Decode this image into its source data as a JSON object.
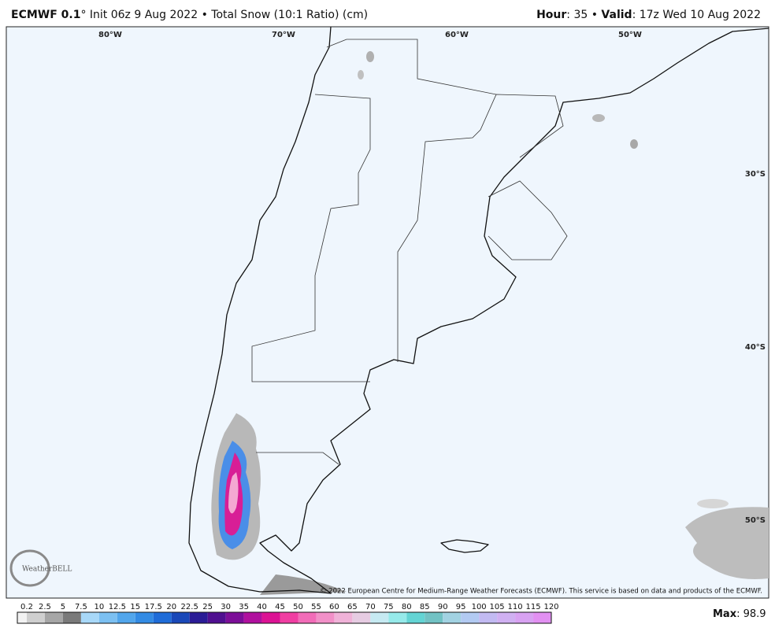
{
  "header": {
    "title_bold": "ECMWF 0.1",
    "title_rest": "° Init 06z 9 Aug 2022 • Total Snow (10:1 Ratio) (cm)",
    "hour_label": "Hour",
    "hour_value": ": 35 • ",
    "valid_label": "Valid",
    "valid_value": ": 17z Wed 10 Aug 2022"
  },
  "map": {
    "longitude_labels": [
      "80°W",
      "70°W",
      "60°W",
      "50°W"
    ],
    "latitude_labels": [
      "30°S",
      "40°S",
      "50°S"
    ],
    "logo": "WeatherBELL",
    "copyright": "© 2022 European Centre for Medium-Range Weather Forecasts (ECMWF). This service is based on data and products of the ECMWF."
  },
  "legend": {
    "labels": [
      "0.2",
      "2.5",
      "5",
      "7.5",
      "10",
      "12.5",
      "15",
      "17.5",
      "20",
      "22.5",
      "25",
      "30",
      "35",
      "40",
      "45",
      "50",
      "55",
      "60",
      "65",
      "70",
      "75",
      "80",
      "85",
      "90",
      "95",
      "100",
      "105",
      "110",
      "115",
      "120"
    ],
    "colors": [
      "#f2f2f2",
      "#cfcfcf",
      "#a6a6a6",
      "#7a7a7a",
      "#a8d8f8",
      "#7cc0f2",
      "#52a6ec",
      "#338be4",
      "#1f6cd8",
      "#1a48b8",
      "#2a1c96",
      "#501090",
      "#7c0e98",
      "#b0109e",
      "#dc1294",
      "#f03ea2",
      "#f26cb8",
      "#f290c8",
      "#f0b2d8",
      "#e6cce2",
      "#c6eaf2",
      "#96eaea",
      "#64d4d4",
      "#72c2c4",
      "#a2d2e2",
      "#b2caf2",
      "#c2baf2",
      "#d0b0f2",
      "#d8a2f2",
      "#e290f2"
    ],
    "max_label": "Max",
    "max_value": ": 98.9"
  }
}
